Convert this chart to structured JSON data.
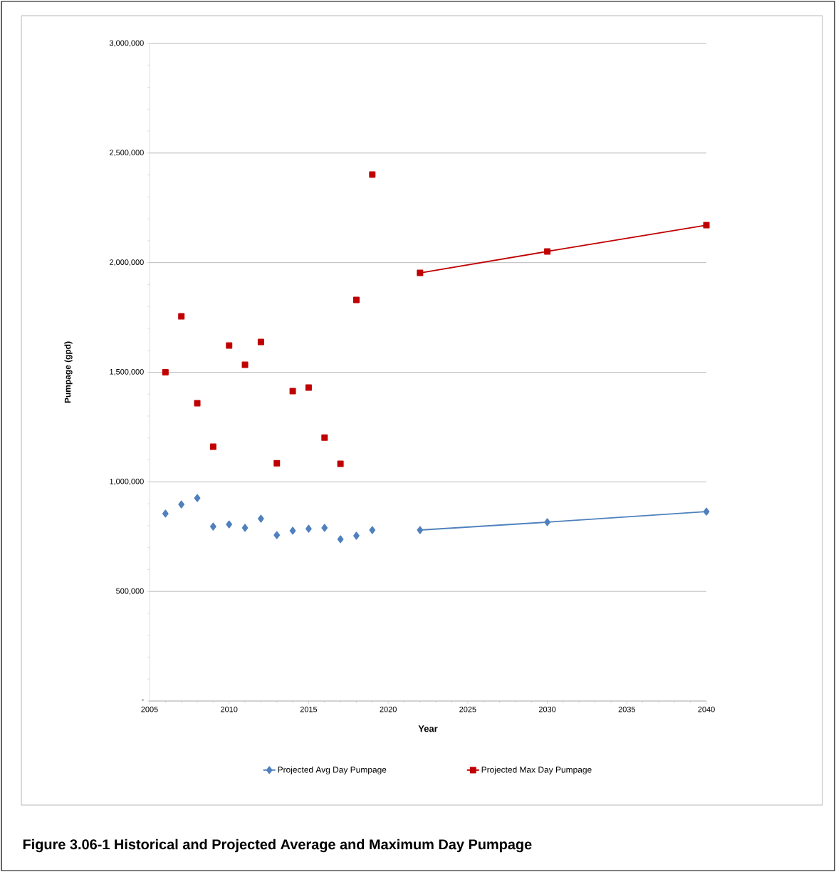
{
  "chart_data": {
    "type": "line",
    "title": "Figure 3.06-1  Historical and Projected Average and Maximum Day Pumpage",
    "xlabel": "Year",
    "ylabel": "Pumpage (gpd)",
    "xlim": [
      2005,
      2040
    ],
    "xticks": [
      2005,
      2010,
      2015,
      2020,
      2025,
      2030,
      2035,
      2040
    ],
    "ylim": [
      0,
      3000000
    ],
    "yticks": [
      {
        "value": 0,
        "label": "-"
      },
      {
        "value": 500000,
        "label": "500,000"
      },
      {
        "value": 1000000,
        "label": "1,000,000"
      },
      {
        "value": 1500000,
        "label": "1,500,000"
      },
      {
        "value": 2000000,
        "label": "2,000,000"
      },
      {
        "value": 2500000,
        "label": "2,500,000"
      },
      {
        "value": 3000000,
        "label": "3,000,000"
      }
    ],
    "grid": "y",
    "legend": "bottom",
    "series": [
      {
        "type": "scatter",
        "color": "#4f81bd",
        "marker": "diamond",
        "x": [
          2006,
          2007,
          2008,
          2009,
          2010,
          2011,
          2012,
          2013,
          2014,
          2015,
          2016,
          2017,
          2018,
          2019
        ],
        "values": [
          855000,
          897000,
          926000,
          796000,
          806000,
          790000,
          832000,
          757000,
          777000,
          786000,
          790000,
          738000,
          754000,
          780000
        ]
      },
      {
        "type": "scatter",
        "color": "#c00000",
        "marker": "square",
        "x": [
          2006,
          2007,
          2008,
          2009,
          2010,
          2011,
          2012,
          2013,
          2014,
          2015,
          2016,
          2017,
          2018,
          2019
        ],
        "values": [
          1500000,
          1755000,
          1359000,
          1160000,
          1622000,
          1534000,
          1638000,
          1085000,
          1414000,
          1430000,
          1202000,
          1082000,
          1830000,
          2402000
        ]
      },
      {
        "name": "Projected Avg Day Pumpage",
        "color": "#4f81bd",
        "marker": "diamond",
        "x": [
          2022,
          2030,
          2040
        ],
        "values": [
          780000,
          816000,
          864000
        ]
      },
      {
        "name": "Projected Max Day Pumpage",
        "color": "#c00000",
        "marker": "square",
        "x": [
          2022,
          2030,
          2040
        ],
        "values": [
          1953000,
          2051000,
          2171000
        ]
      }
    ]
  }
}
